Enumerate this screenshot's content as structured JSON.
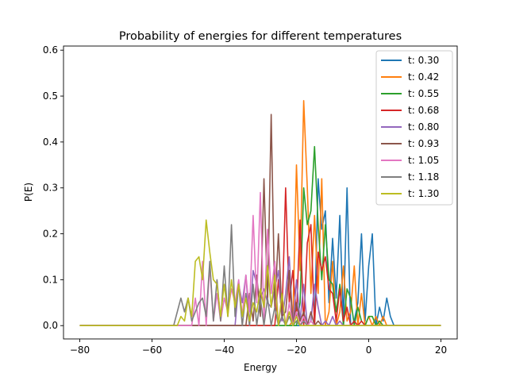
{
  "chart_data": {
    "type": "line",
    "title": "Probability of energies for different temperatures",
    "xlabel": "Energy",
    "ylabel": "P(E)",
    "xlim": [
      -84.5,
      24.5
    ],
    "ylim": [
      -0.029,
      0.609
    ],
    "xticks": [
      -80,
      -60,
      -40,
      -20,
      0,
      20
    ],
    "yticks": [
      0.0,
      0.1,
      0.2,
      0.3,
      0.4,
      0.5,
      0.6
    ],
    "grid": false,
    "legend": "top-right",
    "series": [
      {
        "name": "t: 0.30",
        "color": "#1f77b4",
        "peaks": [
          [
            6,
            0.02
          ],
          [
            5,
            0.06
          ],
          [
            4,
            0.01
          ],
          [
            3,
            0.04
          ],
          [
            1,
            0.2
          ],
          [
            0,
            0.13
          ],
          [
            -1,
            0.01
          ],
          [
            -2,
            0.2
          ],
          [
            -3,
            0.05
          ],
          [
            -4,
            0.01
          ],
          [
            -6,
            0.3
          ],
          [
            -7,
            0.01
          ],
          [
            -8,
            0.24
          ],
          [
            -9,
            0.06
          ],
          [
            -10,
            0.19
          ],
          [
            -11,
            0.05
          ],
          [
            -12,
            0.25
          ],
          [
            -13,
            0.21
          ],
          [
            -14,
            0.32
          ]
        ]
      },
      {
        "name": "t: 0.42",
        "color": "#ff7f0e",
        "peaks": [
          [
            4,
            0.02
          ],
          [
            2,
            0.02
          ],
          [
            0,
            0.02
          ],
          [
            -2,
            0.07
          ],
          [
            -4,
            0.13
          ],
          [
            -5,
            0.03
          ],
          [
            -6,
            0.01
          ],
          [
            -7,
            0.13
          ],
          [
            -8,
            0.03
          ],
          [
            -10,
            0.14
          ],
          [
            -11,
            0.03
          ],
          [
            -13,
            0.32
          ],
          [
            -14,
            0.07
          ],
          [
            -15,
            0.24
          ],
          [
            -16,
            0.07
          ],
          [
            -17,
            0.3
          ],
          [
            -18,
            0.49
          ],
          [
            -19,
            0.12
          ],
          [
            -20,
            0.35
          ],
          [
            -21,
            0.01
          ]
        ]
      },
      {
        "name": "t: 0.55",
        "color": "#2ca02c",
        "peaks": [
          [
            3,
            0.01
          ],
          [
            1,
            0.02
          ],
          [
            0,
            0.02
          ],
          [
            -2,
            0.01
          ],
          [
            -3,
            0.04
          ],
          [
            -5,
            0.06
          ],
          [
            -6,
            0.08
          ],
          [
            -8,
            0.09
          ],
          [
            -9,
            0.03
          ],
          [
            -10,
            0.09
          ],
          [
            -11,
            0.1
          ],
          [
            -12,
            0.22
          ],
          [
            -13,
            0.1
          ],
          [
            -14,
            0.22
          ],
          [
            -15,
            0.39
          ],
          [
            -16,
            0.25
          ],
          [
            -17,
            0.22
          ],
          [
            -18,
            0.3
          ],
          [
            -19,
            0.05
          ]
        ]
      },
      {
        "name": "t: 0.68",
        "color": "#d62728",
        "peaks": [
          [
            -2,
            0.01
          ],
          [
            -4,
            0.01
          ],
          [
            -6,
            0.04
          ],
          [
            -7,
            0.01
          ],
          [
            -8,
            0.08
          ],
          [
            -9,
            0.01
          ],
          [
            -10,
            0.07
          ],
          [
            -11,
            0.08
          ],
          [
            -12,
            0.15
          ],
          [
            -13,
            0.12
          ],
          [
            -14,
            0.16
          ],
          [
            -16,
            0.22
          ],
          [
            -17,
            0.18
          ],
          [
            -19,
            0.23
          ],
          [
            -20,
            0.02
          ],
          [
            -21,
            0.12
          ],
          [
            -22,
            0.05
          ],
          [
            -23,
            0.3
          ],
          [
            -24,
            0.02
          ],
          [
            -25,
            0.1
          ]
        ]
      },
      {
        "name": "t: 0.80",
        "color": "#9467bd",
        "peaks": [
          [
            -8,
            0.01
          ],
          [
            -10,
            0.02
          ],
          [
            -12,
            0.01
          ],
          [
            -14,
            0.04
          ],
          [
            -15,
            0.09
          ],
          [
            -16,
            0.01
          ],
          [
            -18,
            0.09
          ],
          [
            -19,
            0.01
          ],
          [
            -20,
            0.1
          ],
          [
            -22,
            0.15
          ],
          [
            -23,
            0.07
          ],
          [
            -24,
            0.01
          ],
          [
            -25,
            0.12
          ],
          [
            -26,
            0.08
          ],
          [
            -27,
            0.04
          ],
          [
            -28,
            0.05
          ],
          [
            -29,
            0.08
          ],
          [
            -30,
            0.06
          ],
          [
            -31,
            0.09
          ],
          [
            -32,
            0.12
          ],
          [
            -34,
            0.11
          ],
          [
            -35,
            0.05
          ],
          [
            -36,
            0.09
          ]
        ]
      },
      {
        "name": "t: 0.93",
        "color": "#8c564b",
        "peaks": [
          [
            -14,
            0.01
          ],
          [
            -16,
            0.03
          ],
          [
            -18,
            0.03
          ],
          [
            -19,
            0.01
          ],
          [
            -20,
            0.05
          ],
          [
            -22,
            0.12
          ],
          [
            -23,
            0.03
          ],
          [
            -24,
            0.02
          ],
          [
            -25,
            0.2
          ],
          [
            -26,
            0.04
          ],
          [
            -27,
            0.46
          ],
          [
            -28,
            0.05
          ],
          [
            -29,
            0.32
          ],
          [
            -30,
            0.02
          ],
          [
            -31,
            0.11
          ],
          [
            -32,
            0.01
          ],
          [
            -33,
            0.07
          ]
        ]
      },
      {
        "name": "t: 1.05",
        "color": "#e377c2",
        "peaks": [
          [
            -16,
            0.01
          ],
          [
            -18,
            0.02
          ],
          [
            -20,
            0.03
          ],
          [
            -22,
            0.05
          ],
          [
            -24,
            0.02
          ],
          [
            -26,
            0.14
          ],
          [
            -27,
            0.07
          ],
          [
            -28,
            0.21
          ],
          [
            -29,
            0.01
          ],
          [
            -30,
            0.29
          ],
          [
            -31,
            0.05
          ],
          [
            -32,
            0.24
          ],
          [
            -33,
            0.03
          ],
          [
            -34,
            0.11
          ],
          [
            -35,
            0.02
          ],
          [
            -36,
            0.1
          ],
          [
            -37,
            0.05
          ],
          [
            -38,
            0.08
          ],
          [
            -39,
            0.03
          ],
          [
            -40,
            0.06
          ],
          [
            -41,
            0.01
          ],
          [
            -42,
            0.07
          ],
          [
            -43,
            0.01
          ],
          [
            -44,
            0.13
          ],
          [
            -46,
            0.14
          ],
          [
            -48,
            0.06
          ]
        ]
      },
      {
        "name": "t: 1.18",
        "color": "#7f7f7f",
        "peaks": [
          [
            -18,
            0.01
          ],
          [
            -20,
            0.01
          ],
          [
            -22,
            0.02
          ],
          [
            -24,
            0.02
          ],
          [
            -26,
            0.04
          ],
          [
            -28,
            0.06
          ],
          [
            -30,
            0.06
          ],
          [
            -32,
            0.09
          ],
          [
            -34,
            0.07
          ],
          [
            -36,
            0.09
          ],
          [
            -37,
            0.02
          ],
          [
            -38,
            0.22
          ],
          [
            -39,
            0.02
          ],
          [
            -40,
            0.13
          ],
          [
            -41,
            0.01
          ],
          [
            -42,
            0.1
          ],
          [
            -43,
            0.01
          ],
          [
            -44,
            0.14
          ],
          [
            -45,
            0.02
          ],
          [
            -46,
            0.06
          ],
          [
            -47,
            0.05
          ],
          [
            -48,
            0.03
          ],
          [
            -49,
            0.01
          ],
          [
            -50,
            0.06
          ],
          [
            -51,
            0.03
          ],
          [
            -52,
            0.06
          ],
          [
            -53,
            0.03
          ]
        ]
      },
      {
        "name": "t: 1.30",
        "color": "#bcbd22",
        "peaks": [
          [
            -20,
            0.02
          ],
          [
            -22,
            0.03
          ],
          [
            -24,
            0.07
          ],
          [
            -26,
            0.11
          ],
          [
            -27,
            0.04
          ],
          [
            -28,
            0.13
          ],
          [
            -29,
            0.04
          ],
          [
            -30,
            0.08
          ],
          [
            -31,
            0.03
          ],
          [
            -32,
            0.05
          ],
          [
            -33,
            0.01
          ],
          [
            -34,
            0.06
          ],
          [
            -35,
            0.02
          ],
          [
            -36,
            0.09
          ],
          [
            -37,
            0.04
          ],
          [
            -38,
            0.1
          ],
          [
            -39,
            0.02
          ],
          [
            -40,
            0.09
          ],
          [
            -41,
            0.02
          ],
          [
            -42,
            0.09
          ],
          [
            -43,
            0.1
          ],
          [
            -44,
            0.16
          ],
          [
            -45,
            0.23
          ],
          [
            -46,
            0.1
          ],
          [
            -47,
            0.15
          ],
          [
            -48,
            0.14
          ],
          [
            -49,
            0.02
          ],
          [
            -50,
            0.06
          ],
          [
            -51,
            0.01
          ],
          [
            -52,
            0.02
          ]
        ]
      }
    ]
  }
}
